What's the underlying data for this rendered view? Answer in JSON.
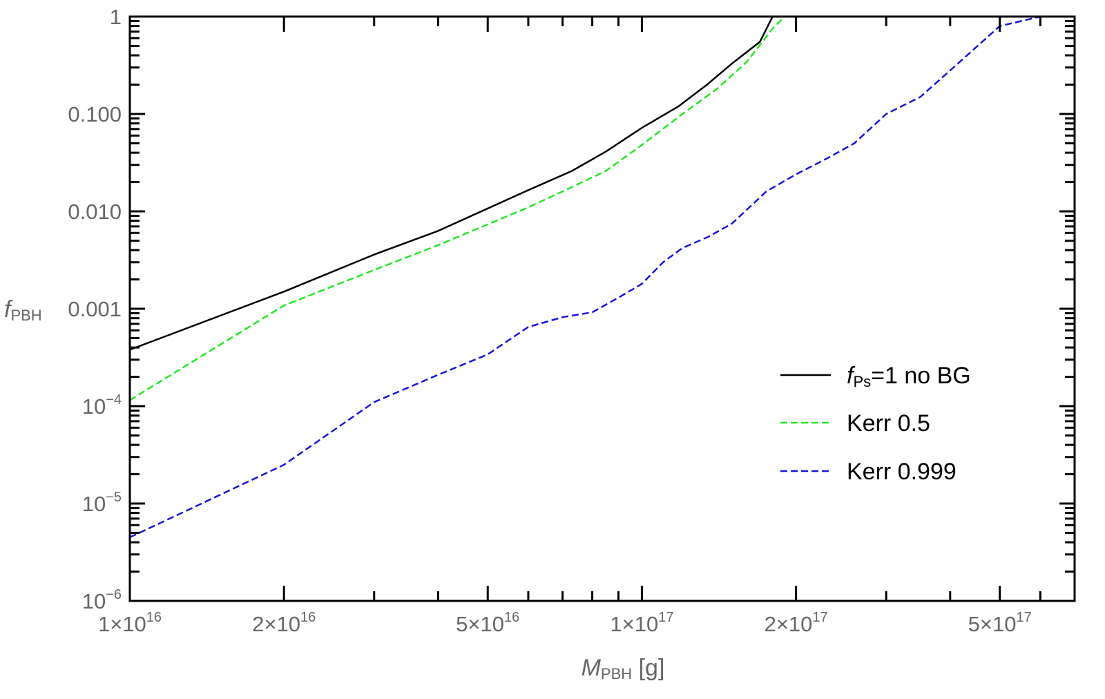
{
  "chart_data": {
    "type": "line",
    "xscale": "log",
    "yscale": "log",
    "xlim": [
      1e+16,
      7e+17
    ],
    "ylim": [
      1e-06,
      1
    ],
    "xlabel": {
      "main": "M",
      "sub": "PBH",
      "suffix": " [g]"
    },
    "ylabel": {
      "main": "f",
      "sub": "PBH"
    },
    "x_ticks": [
      {
        "value": 1e+16,
        "mantissa": "1",
        "times": "×",
        "base": "10",
        "exp": "16"
      },
      {
        "value": 2e+16,
        "mantissa": "2",
        "times": "×",
        "base": "10",
        "exp": "16"
      },
      {
        "value": 5e+16,
        "mantissa": "5",
        "times": "×",
        "base": "10",
        "exp": "16"
      },
      {
        "value": 1e+17,
        "mantissa": "1",
        "times": "×",
        "base": "10",
        "exp": "17"
      },
      {
        "value": 2e+17,
        "mantissa": "2",
        "times": "×",
        "base": "10",
        "exp": "17"
      },
      {
        "value": 5e+17,
        "mantissa": "5",
        "times": "×",
        "base": "10",
        "exp": "17"
      }
    ],
    "y_ticks": [
      {
        "value": 1,
        "text": "1",
        "base": "",
        "exp": ""
      },
      {
        "value": 0.1,
        "text": "0.100",
        "base": "",
        "exp": ""
      },
      {
        "value": 0.01,
        "text": "0.010",
        "base": "",
        "exp": ""
      },
      {
        "value": 0.001,
        "text": "0.001",
        "base": "",
        "exp": ""
      },
      {
        "value": 0.0001,
        "text": "",
        "base": "10",
        "exp": "−4"
      },
      {
        "value": 1e-05,
        "text": "",
        "base": "10",
        "exp": "−5"
      },
      {
        "value": 1e-06,
        "text": "",
        "base": "10",
        "exp": "−6"
      }
    ],
    "legend": {
      "position": "right"
    },
    "series": [
      {
        "name": "f_Ps=1 no BG",
        "legend_main": "f",
        "legend_sub": "Ps",
        "legend_rest": "=1 no BG",
        "color": "#000000",
        "dash": "solid",
        "x": [
          1e+16,
          2e+16,
          3e+16,
          4e+16,
          6e+16,
          7.3e+16,
          8.5e+16,
          1e+17,
          1.18e+17,
          1.34e+17,
          1.5e+17,
          1.7e+17,
          1.8e+17
        ],
        "y": [
          0.00038,
          0.0015,
          0.0036,
          0.0063,
          0.0165,
          0.026,
          0.041,
          0.072,
          0.12,
          0.2,
          0.33,
          0.55,
          1.0
        ]
      },
      {
        "name": "Kerr 0.5",
        "color": "#22e822",
        "dash": "dashed",
        "x": [
          1e+16,
          2e+16,
          3e+16,
          4e+16,
          6e+16,
          7e+16,
          8.5e+16,
          1e+17,
          1.2e+17,
          1.4e+17,
          1.6e+17,
          1.8e+17,
          1.9e+17
        ],
        "y": [
          0.000115,
          0.00108,
          0.0025,
          0.0045,
          0.011,
          0.016,
          0.026,
          0.048,
          0.1,
          0.18,
          0.34,
          0.75,
          1.0
        ]
      },
      {
        "name": "Kerr 0.999",
        "color": "#1515e0",
        "dash": "dashed",
        "x": [
          1e+16,
          2e+16,
          3e+16,
          4e+16,
          5e+16,
          6e+16,
          7e+16,
          8e+16,
          9e+16,
          1e+17,
          1.1e+17,
          1.2e+17,
          1.35e+17,
          1.5e+17,
          1.75e+17,
          2e+17,
          2.3e+17,
          2.6e+17,
          3e+17,
          3.5e+17,
          4e+17,
          5e+17,
          6e+17
        ],
        "y": [
          4.5e-06,
          2.5e-05,
          0.00011,
          0.00021,
          0.00034,
          0.00065,
          0.00082,
          0.00092,
          0.0013,
          0.0018,
          0.003,
          0.0042,
          0.0055,
          0.0075,
          0.016,
          0.024,
          0.035,
          0.05,
          0.1,
          0.15,
          0.28,
          0.8,
          1.0
        ]
      }
    ]
  }
}
